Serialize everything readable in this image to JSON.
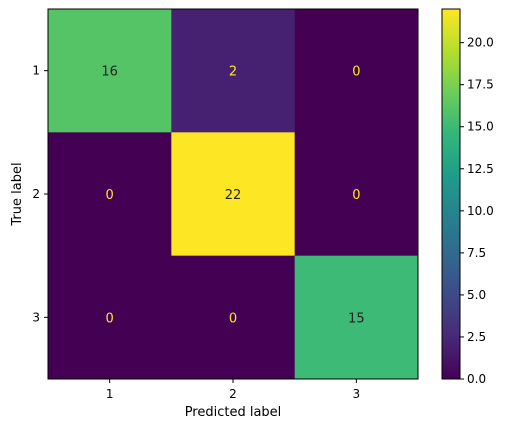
{
  "chart_data": {
    "type": "heatmap",
    "title": "",
    "xlabel": "Predicted label",
    "ylabel": "True label",
    "x_categories": [
      "1",
      "2",
      "3"
    ],
    "y_categories": [
      "1",
      "2",
      "3"
    ],
    "values": [
      [
        16,
        2,
        0
      ],
      [
        0,
        22,
        0
      ],
      [
        0,
        0,
        15
      ]
    ],
    "colormap": "viridis",
    "colorbar": {
      "range": [
        0,
        22
      ],
      "ticks": [
        "0.0",
        "2.5",
        "5.0",
        "7.5",
        "10.0",
        "12.5",
        "15.0",
        "17.5",
        "20.0"
      ]
    },
    "cell_text_colors": {
      "on_dark": "#fde725",
      "on_light": "#222222"
    }
  }
}
